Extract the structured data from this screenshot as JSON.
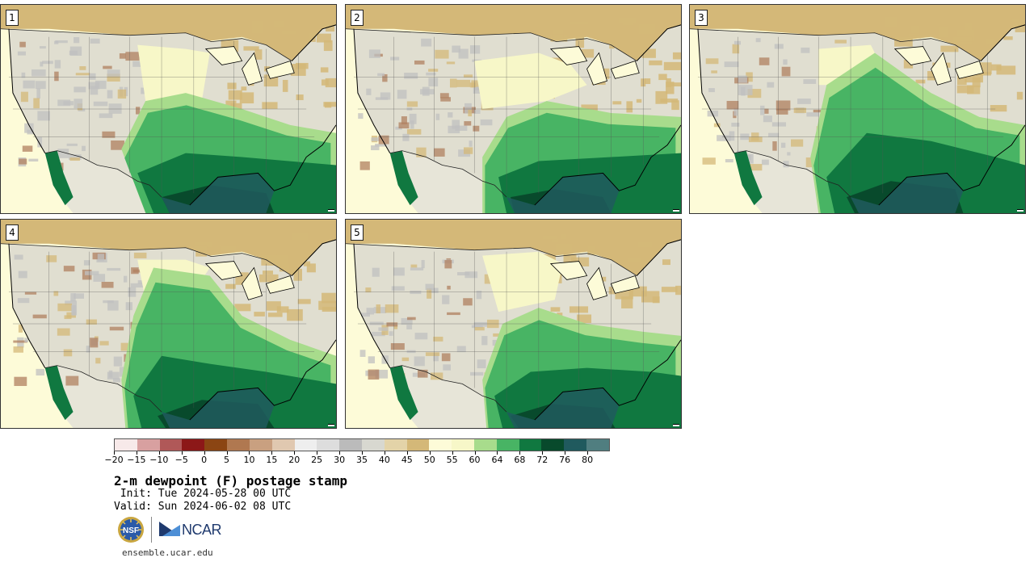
{
  "stamps": [
    {
      "label": "1"
    },
    {
      "label": "2"
    },
    {
      "label": "3"
    },
    {
      "label": "4"
    },
    {
      "label": "5"
    }
  ],
  "colorbar": {
    "colors": [
      "#f7e9e9",
      "#d8a0a0",
      "#b05858",
      "#8c1818",
      "#8b4513",
      "#b07850",
      "#c9a080",
      "#e0c8b0",
      "#eeeeee",
      "#dddddd",
      "#bbbbbb",
      "#d8d8d0",
      "#e3d3a8",
      "#d4b878",
      "#fdfbd8",
      "#f7f7c8",
      "#a8dc8c",
      "#48b464",
      "#107840",
      "#084a2c",
      "#205a5e",
      "#507e80"
    ],
    "tick_labels": [
      "−20",
      "−15",
      "−10",
      "−5",
      "0",
      "5",
      "10",
      "15",
      "20",
      "25",
      "30",
      "35",
      "40",
      "45",
      "50",
      "55",
      "60",
      "64",
      "68",
      "72",
      "76",
      "80"
    ]
  },
  "title": "2-m dewpoint (F) postage stamp",
  "init": " Init: Tue 2024-05-28 00 UTC",
  "valid": "Valid: Sun 2024-06-02 08 UTC",
  "logos": {
    "nsf": "NSF",
    "ncar": "NCAR"
  },
  "site": "ensemble.ucar.edu"
}
